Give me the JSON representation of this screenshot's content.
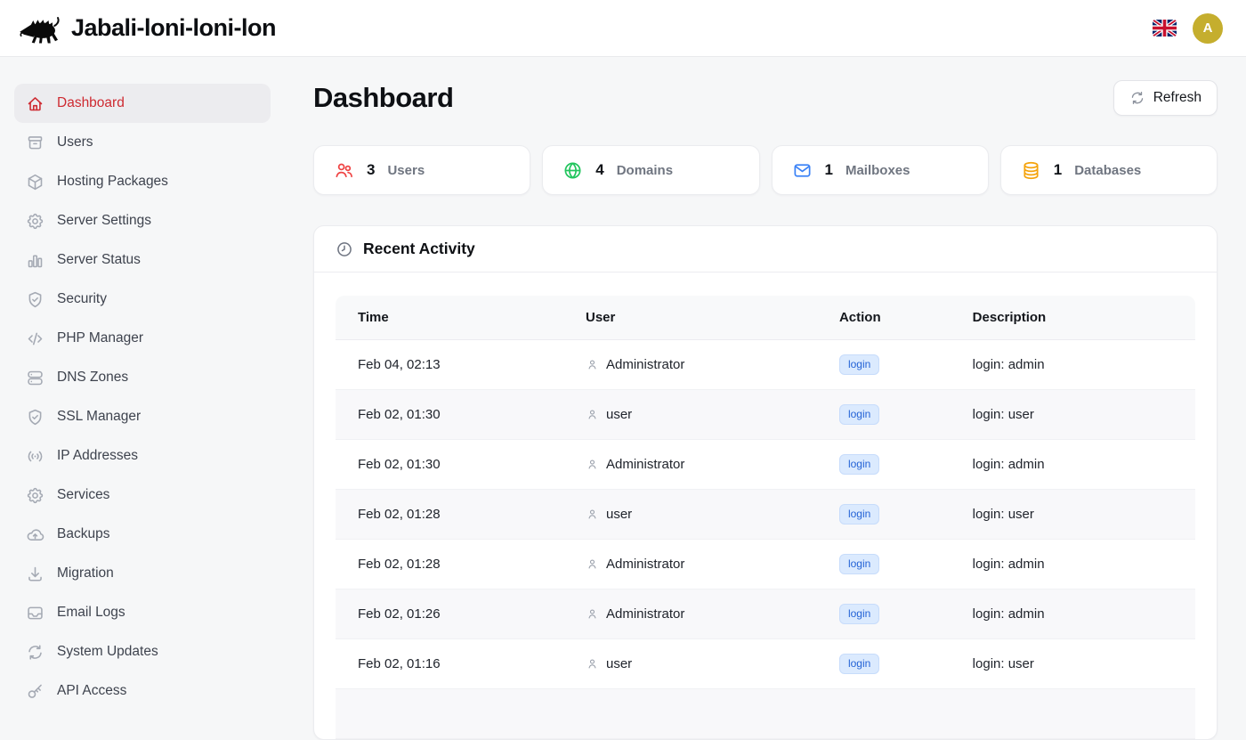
{
  "header": {
    "app_title": "Jabali-loni-loni-lon",
    "language_flag": "uk-flag",
    "avatar_initial": "A",
    "avatar_color": "#c5ae2e"
  },
  "sidebar": {
    "items": [
      {
        "label": "Dashboard",
        "icon": "home-icon",
        "active": true
      },
      {
        "label": "Users",
        "icon": "archive-icon",
        "active": false
      },
      {
        "label": "Hosting Packages",
        "icon": "package-icon",
        "active": false
      },
      {
        "label": "Server Settings",
        "icon": "gear-icon",
        "active": false
      },
      {
        "label": "Server Status",
        "icon": "chart-icon",
        "active": false
      },
      {
        "label": "Security",
        "icon": "shield-icon",
        "active": false
      },
      {
        "label": "PHP Manager",
        "icon": "code-icon",
        "active": false
      },
      {
        "label": "DNS Zones",
        "icon": "servers-icon",
        "active": false
      },
      {
        "label": "SSL Manager",
        "icon": "shield-icon",
        "active": false
      },
      {
        "label": "IP Addresses",
        "icon": "broadcast-icon",
        "active": false
      },
      {
        "label": "Services",
        "icon": "gear-icon",
        "active": false
      },
      {
        "label": "Backups",
        "icon": "cloud-up-icon",
        "active": false
      },
      {
        "label": "Migration",
        "icon": "download-icon",
        "active": false
      },
      {
        "label": "Email Logs",
        "icon": "inbox-icon",
        "active": false
      },
      {
        "label": "System Updates",
        "icon": "refresh-icon",
        "active": false
      },
      {
        "label": "API Access",
        "icon": "key-icon",
        "active": false
      }
    ],
    "active_color": "#ce2a31"
  },
  "page": {
    "title": "Dashboard",
    "refresh_label": "Refresh"
  },
  "stats": [
    {
      "value": "3",
      "label": "Users",
      "icon": "users-icon",
      "color": "#ef4444"
    },
    {
      "value": "4",
      "label": "Domains",
      "icon": "globe-icon",
      "color": "#22c55e"
    },
    {
      "value": "1",
      "label": "Mailboxes",
      "icon": "mail-icon",
      "color": "#3b82f6"
    },
    {
      "value": "1",
      "label": "Databases",
      "icon": "database-icon",
      "color": "#f5a30b"
    }
  ],
  "activity": {
    "title": "Recent Activity",
    "columns": [
      "Time",
      "User",
      "Action",
      "Description"
    ],
    "badge_colors": {
      "bg": "#dbeafe",
      "text": "#2463d6"
    },
    "rows": [
      {
        "time": "Feb 04, 02:13",
        "user": "Administrator",
        "action": "login",
        "description": "login: admin"
      },
      {
        "time": "Feb 02, 01:30",
        "user": "user",
        "action": "login",
        "description": "login: user"
      },
      {
        "time": "Feb 02, 01:30",
        "user": "Administrator",
        "action": "login",
        "description": "login: admin"
      },
      {
        "time": "Feb 02, 01:28",
        "user": "user",
        "action": "login",
        "description": "login: user"
      },
      {
        "time": "Feb 02, 01:28",
        "user": "Administrator",
        "action": "login",
        "description": "login: admin"
      },
      {
        "time": "Feb 02, 01:26",
        "user": "Administrator",
        "action": "login",
        "description": "login: admin"
      },
      {
        "time": "Feb 02, 01:16",
        "user": "user",
        "action": "login",
        "description": "login: user"
      }
    ]
  }
}
